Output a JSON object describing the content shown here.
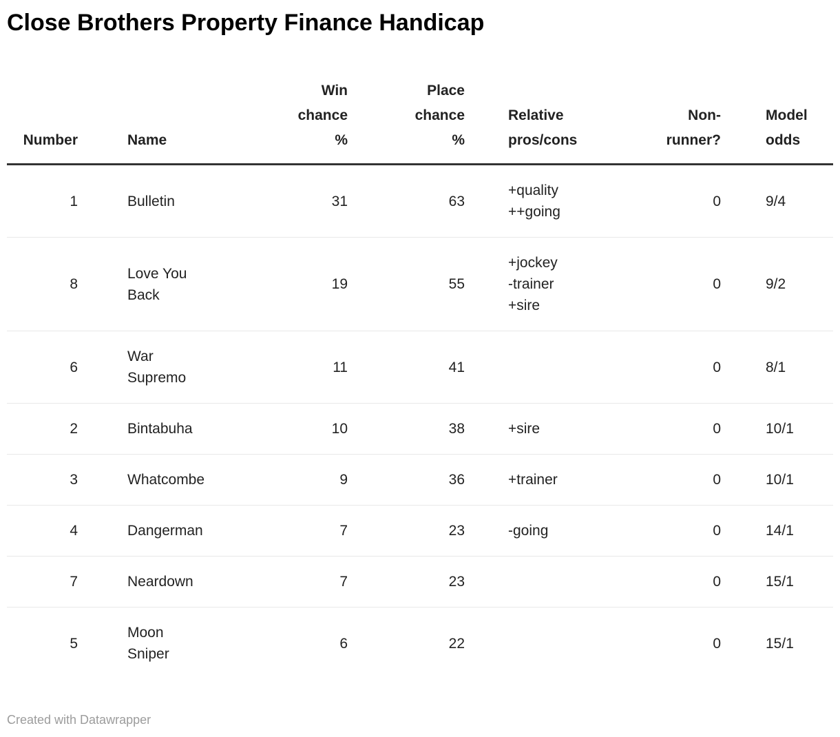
{
  "chart_data": {
    "type": "table",
    "title": "Close Brothers Property Finance Handicap",
    "columns": [
      "Number",
      "Name",
      "Win chance %",
      "Place chance %",
      "Relative pros/cons",
      "Non-runner?",
      "Model odds"
    ],
    "columns_display": [
      "Number",
      "Name",
      "Win\nchance\n%",
      "Place\nchance\n%",
      "Relative\npros/cons",
      "Non-\nrunner?",
      "Model\nodds"
    ],
    "column_alignments": [
      "right",
      "left",
      "right",
      "right",
      "left",
      "right",
      "left"
    ],
    "rows": [
      {
        "number": 1,
        "name": "Bulletin",
        "win_chance_pct": 31,
        "place_chance_pct": 63,
        "pros_cons": "+quality\n++going",
        "non_runner": 0,
        "model_odds": "9/4"
      },
      {
        "number": 8,
        "name": "Love You\nBack",
        "win_chance_pct": 19,
        "place_chance_pct": 55,
        "pros_cons": "+jockey\n-trainer\n+sire",
        "non_runner": 0,
        "model_odds": "9/2"
      },
      {
        "number": 6,
        "name": "War\nSupremo",
        "win_chance_pct": 11,
        "place_chance_pct": 41,
        "pros_cons": "",
        "non_runner": 0,
        "model_odds": "8/1"
      },
      {
        "number": 2,
        "name": "Bintabuha",
        "win_chance_pct": 10,
        "place_chance_pct": 38,
        "pros_cons": "+sire",
        "non_runner": 0,
        "model_odds": "10/1"
      },
      {
        "number": 3,
        "name": "Whatcombe",
        "win_chance_pct": 9,
        "place_chance_pct": 36,
        "pros_cons": "+trainer",
        "non_runner": 0,
        "model_odds": "10/1"
      },
      {
        "number": 4,
        "name": "Dangerman",
        "win_chance_pct": 7,
        "place_chance_pct": 23,
        "pros_cons": "-going",
        "non_runner": 0,
        "model_odds": "14/1"
      },
      {
        "number": 7,
        "name": "Neardown",
        "win_chance_pct": 7,
        "place_chance_pct": 23,
        "pros_cons": "",
        "non_runner": 0,
        "model_odds": "15/1"
      },
      {
        "number": 5,
        "name": "Moon\nSniper",
        "win_chance_pct": 6,
        "place_chance_pct": 22,
        "pros_cons": "",
        "non_runner": 0,
        "model_odds": "15/1"
      }
    ]
  },
  "footer": {
    "credit": "Created with Datawrapper"
  },
  "colors": {
    "background": "#ffffff",
    "title_text": "#000000",
    "header_text": "#222222",
    "body_text": "#222222",
    "header_rule": "#333333",
    "row_divider": "#e8e8e8",
    "credit_text": "#9c9c9c"
  }
}
